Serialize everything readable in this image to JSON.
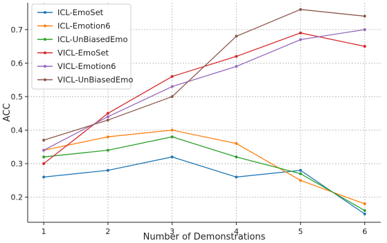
{
  "chart_data": {
    "type": "line",
    "xlabel": "Number of Demonstrations",
    "ylabel": "ACC",
    "x": [
      1,
      2,
      3,
      4,
      5,
      6
    ],
    "xlim": [
      0.75,
      6.25
    ],
    "ylim": [
      0.125,
      0.78
    ],
    "yticks": [
      0.2,
      0.3,
      0.4,
      0.5,
      0.6,
      0.7
    ],
    "grid": true,
    "legend_position": "top-left",
    "series": [
      {
        "name": "ICL-EmoSet",
        "color": "#1f77b4",
        "values": [
          0.26,
          0.28,
          0.32,
          0.26,
          0.28,
          0.15
        ]
      },
      {
        "name": "ICL-Emotion6",
        "color": "#ff7f0e",
        "values": [
          0.34,
          0.38,
          0.4,
          0.36,
          0.25,
          0.18
        ]
      },
      {
        "name": "ICL-UnBiasedEmo",
        "color": "#2ca02c",
        "values": [
          0.32,
          0.34,
          0.38,
          0.32,
          0.27,
          0.16
        ]
      },
      {
        "name": "VICL-EmoSet",
        "color": "#d62728",
        "values": [
          0.3,
          0.45,
          0.56,
          0.62,
          0.69,
          0.65
        ]
      },
      {
        "name": "VICL-Emotion6",
        "color": "#9467bd",
        "values": [
          0.34,
          0.44,
          0.53,
          0.59,
          0.67,
          0.7
        ]
      },
      {
        "name": "VICL-UnBiasedEmo",
        "color": "#8c564b",
        "values": [
          0.37,
          0.43,
          0.5,
          0.68,
          0.76,
          0.74
        ]
      }
    ]
  }
}
